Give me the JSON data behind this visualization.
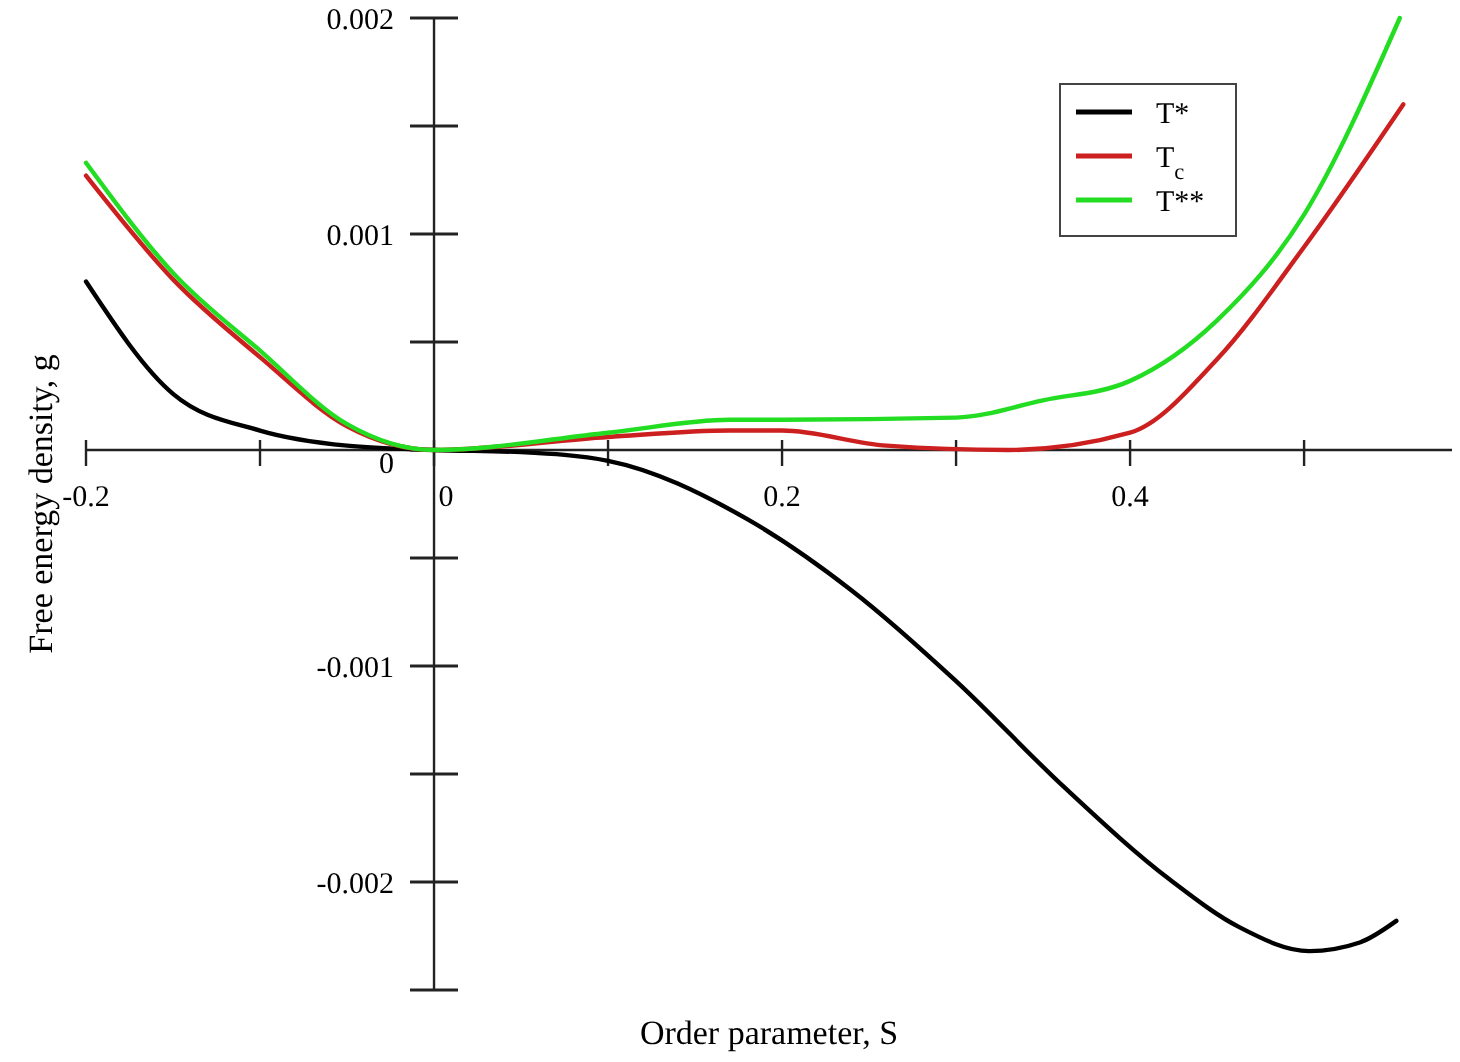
{
  "chart_data": {
    "type": "line",
    "xlabel": "Order parameter, S",
    "ylabel": "Free energy density, g",
    "xlim": [
      -0.2,
      0.585
    ],
    "ylim": [
      -0.0025,
      0.002
    ],
    "xticks": [
      -0.2,
      {
        "value": -0.1,
        "label": null
      },
      {
        "value": 0,
        "label": "0"
      },
      {
        "value": 0.1,
        "label": null
      },
      0.2,
      {
        "value": 0.3,
        "label": null
      },
      0.4,
      {
        "value": 0.5,
        "label": null
      }
    ],
    "yticks": [
      {
        "value": -0.0025,
        "label": null
      },
      -0.002,
      {
        "value": -0.0015,
        "label": null
      },
      -0.001,
      {
        "value": -0.0005,
        "label": null
      },
      {
        "value": 0,
        "label": "0"
      },
      {
        "value": 0.0005,
        "label": null
      },
      0.001,
      {
        "value": 0.0015,
        "label": null
      },
      0.002
    ],
    "grid": false,
    "legend": "top right",
    "line_style": "solid",
    "marker": "none",
    "series": [
      {
        "name": "T*",
        "color": "#000000",
        "x": [
          -0.2,
          -0.15,
          -0.1,
          -0.05,
          0,
          0.05,
          0.1,
          0.18,
          0.24,
          0.3,
          0.362,
          0.423,
          0.463,
          0.503,
          0.532,
          0.553
        ],
        "values": [
          0.00078,
          0.00026,
          9e-05,
          2e-05,
          0,
          -1e-05,
          -5e-05,
          -0.00032,
          -0.00065,
          -0.00107,
          -0.00156,
          -0.00199,
          -0.00221,
          -0.00232,
          -0.00228,
          -0.00218
        ]
      },
      {
        "name": "T$_{c}$",
        "color": "#cc1f1f",
        "x": [
          -0.2,
          -0.15,
          -0.1,
          -0.05,
          0,
          0.1,
          0.17,
          0.2,
          0.26,
          0.33,
          0.4,
          0.45,
          0.5,
          0.557
        ],
        "values": [
          0.00127,
          0.00079,
          0.00043,
          0.00011,
          0,
          6e-05,
          9e-05,
          9e-05,
          2e-05,
          0,
          8e-05,
          0.00042,
          0.00094,
          0.0016
        ]
      },
      {
        "name": "T**",
        "color": "#22dd22",
        "x": [
          -0.2,
          -0.15,
          -0.1,
          -0.05,
          0,
          0.1,
          0.17,
          0.2,
          0.3,
          0.35,
          0.4,
          0.45,
          0.5,
          0.555
        ],
        "values": [
          0.00133,
          0.00082,
          0.00046,
          0.00012,
          0,
          8e-05,
          0.00014,
          0.00014,
          0.00015,
          0.00023,
          0.00032,
          0.0006,
          0.00109,
          0.002
        ]
      }
    ]
  }
}
